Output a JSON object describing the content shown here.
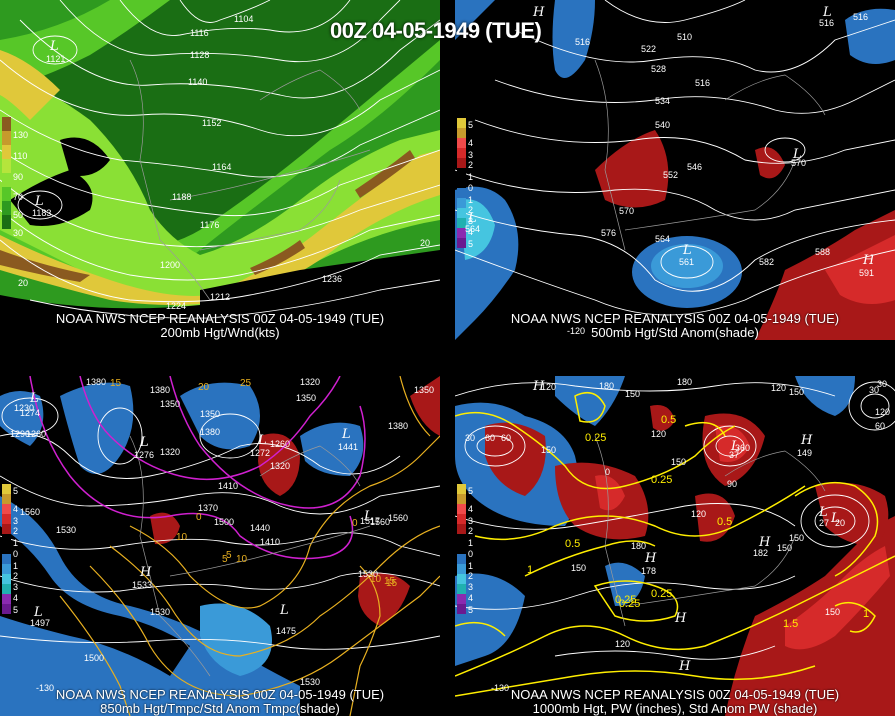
{
  "title": "00Z 04-05-1949 (TUE)",
  "panels": [
    {
      "caption1": "NOAA NWS NCEP REANALYSIS 00Z 04-05-1949 (TUE)",
      "caption2": "200mb Hgt/Wnd(kts)",
      "colorbar": [
        "130",
        "110",
        "90",
        "70",
        "50",
        "30"
      ],
      "contours": [
        "1104",
        "1116",
        "1128",
        "1140",
        "1152",
        "1164",
        "1188",
        "1176",
        "1200",
        "1212",
        "1224",
        "1236"
      ],
      "lows": [
        {
          "h": "L",
          "v": "1121"
        },
        {
          "h": "L",
          "v": "1183"
        }
      ],
      "edge": [
        "20",
        "20"
      ]
    },
    {
      "caption1": "NOAA NWS NCEP REANALYSIS 00Z 04-05-1949 (TUE)",
      "caption2": "500mb Hgt/Std Anom(shade)",
      "colorbar": [
        "5",
        "4",
        "3",
        "2",
        "1",
        "0",
        "1",
        "2",
        "3",
        "4",
        "5"
      ],
      "contours": [
        "516",
        "510",
        "522",
        "528",
        "516",
        "534",
        "540",
        "546",
        "552",
        "570",
        "576",
        "564",
        "582",
        "588",
        "516"
      ],
      "lows": [
        {
          "h": "L",
          "v": "561"
        },
        {
          "h": "L",
          "v": "564"
        },
        {
          "h": "H",
          "v": "591"
        },
        {
          "h": "H",
          "v": ""
        },
        {
          "h": "L",
          "v": "516"
        },
        {
          "h": "L",
          "v": "570"
        }
      ],
      "edge": [
        "-120"
      ]
    },
    {
      "caption1": "NOAA NWS NCEP REANALYSIS 00Z 04-05-1949 (TUE)",
      "caption2": "850mb Hgt/Tmpc/Std Anom Tmpc(shade)",
      "colorbar": [
        "5",
        "4",
        "3",
        "2",
        "1",
        "0",
        "1",
        "2",
        "3",
        "4",
        "5"
      ],
      "contours": [
        "1380",
        "1380",
        "1350",
        "1320",
        "1350",
        "1290",
        "1260",
        "1230",
        "1320",
        "1380",
        "1350",
        "1260",
        "1320",
        "1410",
        "1440",
        "1370",
        "1500",
        "1530",
        "1560",
        "1530",
        "1380",
        "1350",
        "1560",
        "1530",
        "1500",
        "1530",
        "1560",
        "1410"
      ],
      "temps": [
        "15",
        "20",
        "25",
        "10",
        "5",
        "0",
        "0",
        "10",
        "15",
        "5",
        "10",
        "15"
      ],
      "lows": [
        {
          "h": "L",
          "v": "1274"
        },
        {
          "h": "L",
          "v": "1276"
        },
        {
          "h": "L",
          "v": "1272"
        },
        {
          "h": "L",
          "v": "1441"
        },
        {
          "h": "H",
          "v": "1533"
        },
        {
          "h": "L",
          "v": "1497"
        },
        {
          "h": "L",
          "v": "1475"
        },
        {
          "h": "L",
          "v": "1517"
        }
      ],
      "edge": [
        "-130"
      ]
    },
    {
      "caption1": "NOAA NWS NCEP REANALYSIS 00Z 04-05-1949 (TUE)",
      "caption2": "1000mb Hgt, PW (inches), Std Anom PW (shade)",
      "colorbar": [
        "5",
        "4",
        "3",
        "2",
        "1",
        "0",
        "1",
        "2",
        "3",
        "4",
        "5"
      ],
      "contours": [
        "120",
        "180",
        "150",
        "180",
        "120",
        "30",
        "60",
        "150",
        "60",
        "360",
        "150",
        "150",
        "90",
        "120",
        "30",
        "120",
        "150",
        "150",
        "180",
        "150",
        "120",
        "150",
        "30",
        "60",
        "120",
        "0"
      ],
      "pw": [
        "0.25",
        "0.25",
        "0.25",
        "0.5",
        "0.5",
        "1",
        "0.5",
        "0.25",
        "0.25",
        "1.5",
        "1"
      ],
      "lows": [
        {
          "h": "H",
          "v": ""
        },
        {
          "h": "L",
          "v": "37"
        },
        {
          "h": "H",
          "v": "149"
        },
        {
          "h": "H",
          "v": "182"
        },
        {
          "h": "H",
          "v": "178"
        },
        {
          "h": "H",
          "v": ""
        },
        {
          "h": "H",
          "v": ""
        },
        {
          "h": "L",
          "v": "27"
        },
        {
          "h": "L",
          "v": "20"
        }
      ],
      "edge": [
        "-130"
      ]
    }
  ],
  "colors": {
    "wind": [
      "#1a6e14",
      "#2e9a1f",
      "#57c728",
      "#8ae035",
      "#b5e53c",
      "#e0c83a",
      "#c79a2c",
      "#8a5a20"
    ],
    "pos": [
      "#7a1010",
      "#a81818",
      "#d62a2a",
      "#f04a4a"
    ],
    "neg": [
      "#1a4f8c",
      "#2a73bf",
      "#3a9ad8",
      "#45c5e0"
    ],
    "contour": "#ffffff",
    "temp": "#e8b020",
    "pwline": "#ffee00",
    "magenta": "#d020d0"
  }
}
